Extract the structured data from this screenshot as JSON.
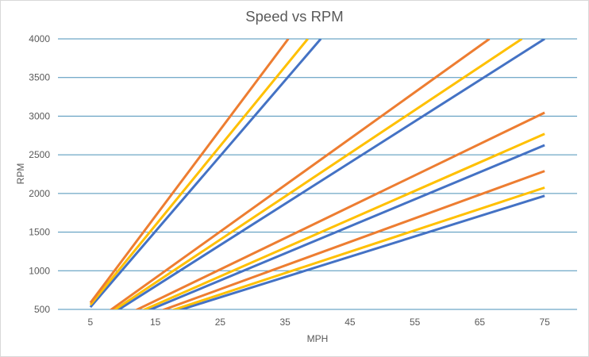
{
  "chart_data": {
    "type": "line",
    "title": "Speed vs RPM",
    "xlabel": "MPH",
    "ylabel": "RPM",
    "xlim": [
      0,
      80
    ],
    "ylim": [
      500,
      4000
    ],
    "xticks": [
      5,
      15,
      25,
      35,
      45,
      55,
      65,
      75
    ],
    "yticks": [
      500,
      1000,
      1500,
      2000,
      2500,
      3000,
      3500,
      4000
    ],
    "grid": true,
    "series": [
      {
        "color": "#4472c4",
        "x": [
          5,
          40.5
        ],
        "y": [
          530,
          4000
        ]
      },
      {
        "color": "#ffc000",
        "x": [
          5,
          38.5
        ],
        "y": [
          560,
          4000
        ]
      },
      {
        "color": "#ed7d31",
        "x": [
          5,
          35.5
        ],
        "y": [
          585,
          4000
        ]
      },
      {
        "color": "#4472c4",
        "x": [
          5,
          75
        ],
        "y": [
          265,
          4000
        ]
      },
      {
        "color": "#ffc000",
        "x": [
          5,
          71.5
        ],
        "y": [
          285,
          4000
        ]
      },
      {
        "color": "#ed7d31",
        "x": [
          5,
          66.5
        ],
        "y": [
          305,
          4000
        ]
      },
      {
        "color": "#4472c4",
        "x": [
          5,
          75
        ],
        "y": [
          175,
          2625
        ]
      },
      {
        "color": "#ffc000",
        "x": [
          5,
          75
        ],
        "y": [
          190,
          2770
        ]
      },
      {
        "color": "#ed7d31",
        "x": [
          5,
          75
        ],
        "y": [
          205,
          3045
        ]
      },
      {
        "color": "#4472c4",
        "x": [
          5,
          75
        ],
        "y": [
          130,
          1970
        ]
      },
      {
        "color": "#ffc000",
        "x": [
          5,
          75
        ],
        "y": [
          140,
          2075
        ]
      },
      {
        "color": "#ed7d31",
        "x": [
          5,
          75
        ],
        "y": [
          150,
          2290
        ]
      }
    ]
  }
}
